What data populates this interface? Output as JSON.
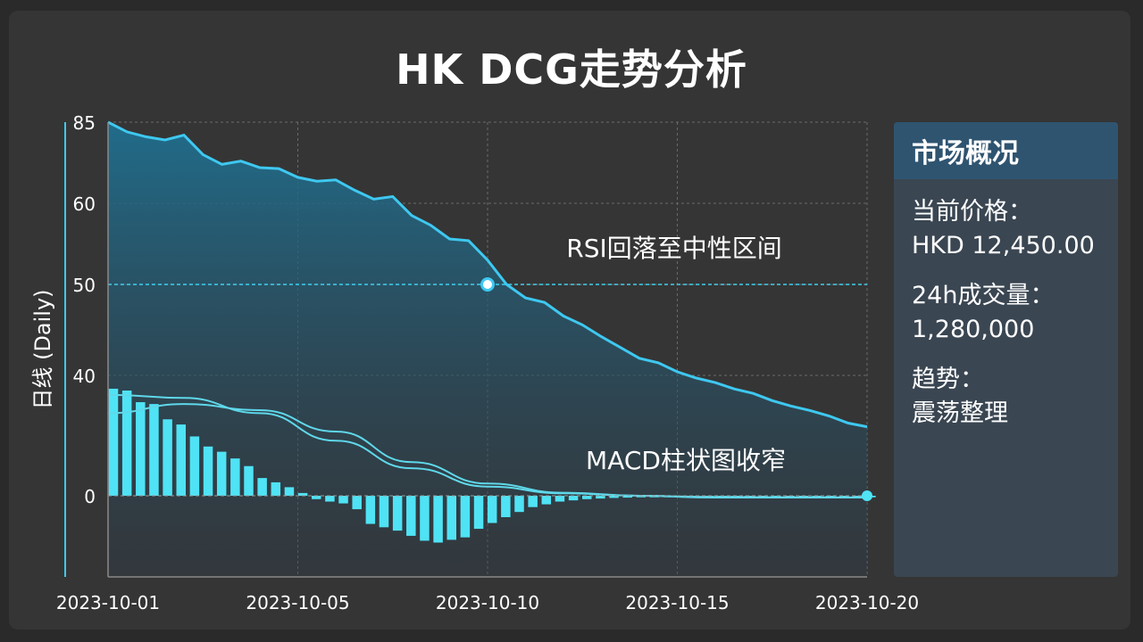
{
  "title": "HK DCG走势分析",
  "panel": {
    "title": "市场概况",
    "items": [
      {
        "label": "当前价格：",
        "value": "HKD 12,450.00"
      },
      {
        "label": "24h成交量：",
        "value": "1,280,000"
      },
      {
        "label": "趋势：",
        "value": "震荡整理"
      }
    ]
  },
  "colors": {
    "line": "#3ec8f0",
    "bar": "#4fe3f5",
    "grid": "#6a6a6a",
    "refline": "#3fd0ef",
    "panel_header": "#2f5470",
    "panel_bg": "#3a4652"
  },
  "chart_data": {
    "type": "line",
    "ylabel": "日线 (Daily)",
    "x_ticks": [
      "2023-10-01",
      "2023-10-05",
      "2023-10-10",
      "2023-10-15",
      "2023-10-20"
    ],
    "rsi": {
      "y_ticks": [
        "85",
        "60",
        "50",
        "40"
      ],
      "reference": 50,
      "annotation": "RSI回落至中性区间",
      "x": [
        0,
        0.5,
        1,
        1.5,
        2,
        2.5,
        3,
        3.5,
        4,
        4.5,
        5,
        5.5,
        6,
        6.5,
        7,
        7.5,
        8,
        8.5,
        9,
        9.5,
        10,
        10.5,
        11,
        11.5,
        12,
        12.5,
        13,
        13.5,
        14,
        14.5,
        15,
        15.5,
        16,
        16.5,
        17,
        17.5,
        18,
        18.5,
        19,
        19.5,
        20
      ],
      "values": [
        85,
        82,
        80.5,
        79.5,
        81,
        75,
        72,
        73,
        71,
        70.7,
        68,
        66.8,
        67.2,
        64,
        61.3,
        62.1,
        58.5,
        57.3,
        55.6,
        55.4,
        53,
        50,
        48.5,
        48,
        46.5,
        45.5,
        44.2,
        43,
        41.8,
        41.3,
        40.3,
        39.6,
        39.1,
        38.4,
        37.9,
        37.1,
        36.5,
        36,
        35.4,
        34.6,
        34.2
      ],
      "marker_x": 10
    },
    "macd": {
      "zero_label": "0",
      "annotation": "MACD柱状图收窄",
      "bars": [
        35,
        34.4,
        30.6,
        30,
        25,
        23.3,
        19.4,
        16.1,
        14.4,
        12.2,
        9.7,
        5.8,
        4.4,
        2.8,
        0.9,
        -1.1,
        -1.9,
        -2.5,
        -4.4,
        -9.2,
        -10.3,
        -11.4,
        -13.1,
        -14.7,
        -15.3,
        -14.4,
        -13.6,
        -10.8,
        -8.9,
        -7,
        -5.3,
        -3.7,
        -2.8,
        -1.9,
        -1.5,
        -1.1,
        -0.9,
        -0.7,
        -0.6,
        -0.5,
        -0.5,
        -0.5,
        -0.5,
        -0.5,
        -0.5,
        -0.5,
        -0.5,
        -0.5,
        -0.5,
        -0.5,
        -0.5,
        -0.5,
        -0.5,
        -0.5,
        -0.5,
        -0.5,
        -0.5
      ],
      "line1": {
        "x": [
          0,
          2,
          4,
          6,
          8,
          10,
          12,
          14,
          16,
          18,
          20
        ],
        "values": [
          33,
          32,
          27,
          18,
          9,
          3,
          0.8,
          0,
          -0.6,
          -0.6,
          -0.6
        ]
      },
      "line2": {
        "x": [
          0,
          2,
          4,
          6,
          8,
          10,
          12,
          14,
          16,
          18,
          20
        ],
        "values": [
          27,
          30,
          28,
          21,
          11,
          4,
          1,
          0,
          -0.4,
          -0.5,
          -0.5
        ]
      },
      "end_marker": 0
    }
  }
}
